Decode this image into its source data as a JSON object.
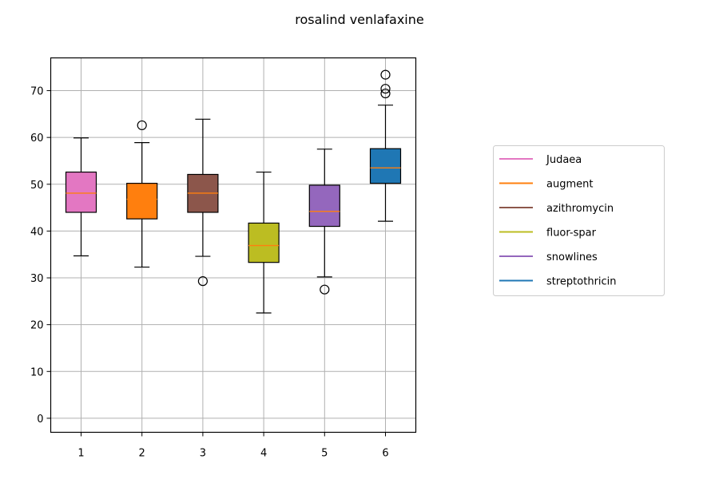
{
  "chart_data": {
    "type": "box",
    "title": "rosalind venlafaxine",
    "xlabel": "",
    "ylabel": "",
    "categories": [
      "1",
      "2",
      "3",
      "4",
      "5",
      "6"
    ],
    "ylim": [
      -3,
      77
    ],
    "yticks": [
      0,
      10,
      20,
      30,
      40,
      50,
      60,
      70
    ],
    "grid": true,
    "legend_position": "right",
    "series": [
      {
        "name": "Judaea",
        "color": "#e377c2",
        "median_color": "#ff7f0e",
        "whisker_low": 34.7,
        "q1": 44.0,
        "median": 48.1,
        "q3": 52.6,
        "whisker_high": 59.9,
        "outliers": []
      },
      {
        "name": "augment",
        "color": "#ff7f0e",
        "median_color": "#ff7f0e",
        "whisker_low": 32.3,
        "q1": 42.6,
        "median": 46.8,
        "q3": 50.2,
        "whisker_high": 58.9,
        "outliers": [
          62.6
        ]
      },
      {
        "name": "azithromycin",
        "color": "#8c564b",
        "median_color": "#ff7f0e",
        "whisker_low": 34.6,
        "q1": 44.0,
        "median": 48.1,
        "q3": 52.1,
        "whisker_high": 63.9,
        "outliers": [
          29.3
        ]
      },
      {
        "name": "fluor-spar",
        "color": "#bcbd22",
        "median_color": "#ff7f0e",
        "whisker_low": 22.5,
        "q1": 33.3,
        "median": 36.9,
        "q3": 41.7,
        "whisker_high": 52.6,
        "outliers": []
      },
      {
        "name": "snowlines",
        "color": "#9467bd",
        "median_color": "#ff7f0e",
        "whisker_low": 30.2,
        "q1": 41.0,
        "median": 44.2,
        "q3": 49.8,
        "whisker_high": 57.5,
        "outliers": [
          27.5
        ]
      },
      {
        "name": "streptothricin",
        "color": "#1f77b4",
        "median_color": "#ff7f0e",
        "whisker_low": 42.1,
        "q1": 50.2,
        "median": 53.5,
        "q3": 57.6,
        "whisker_high": 66.9,
        "outliers": [
          69.4,
          70.4,
          73.4
        ]
      }
    ]
  }
}
